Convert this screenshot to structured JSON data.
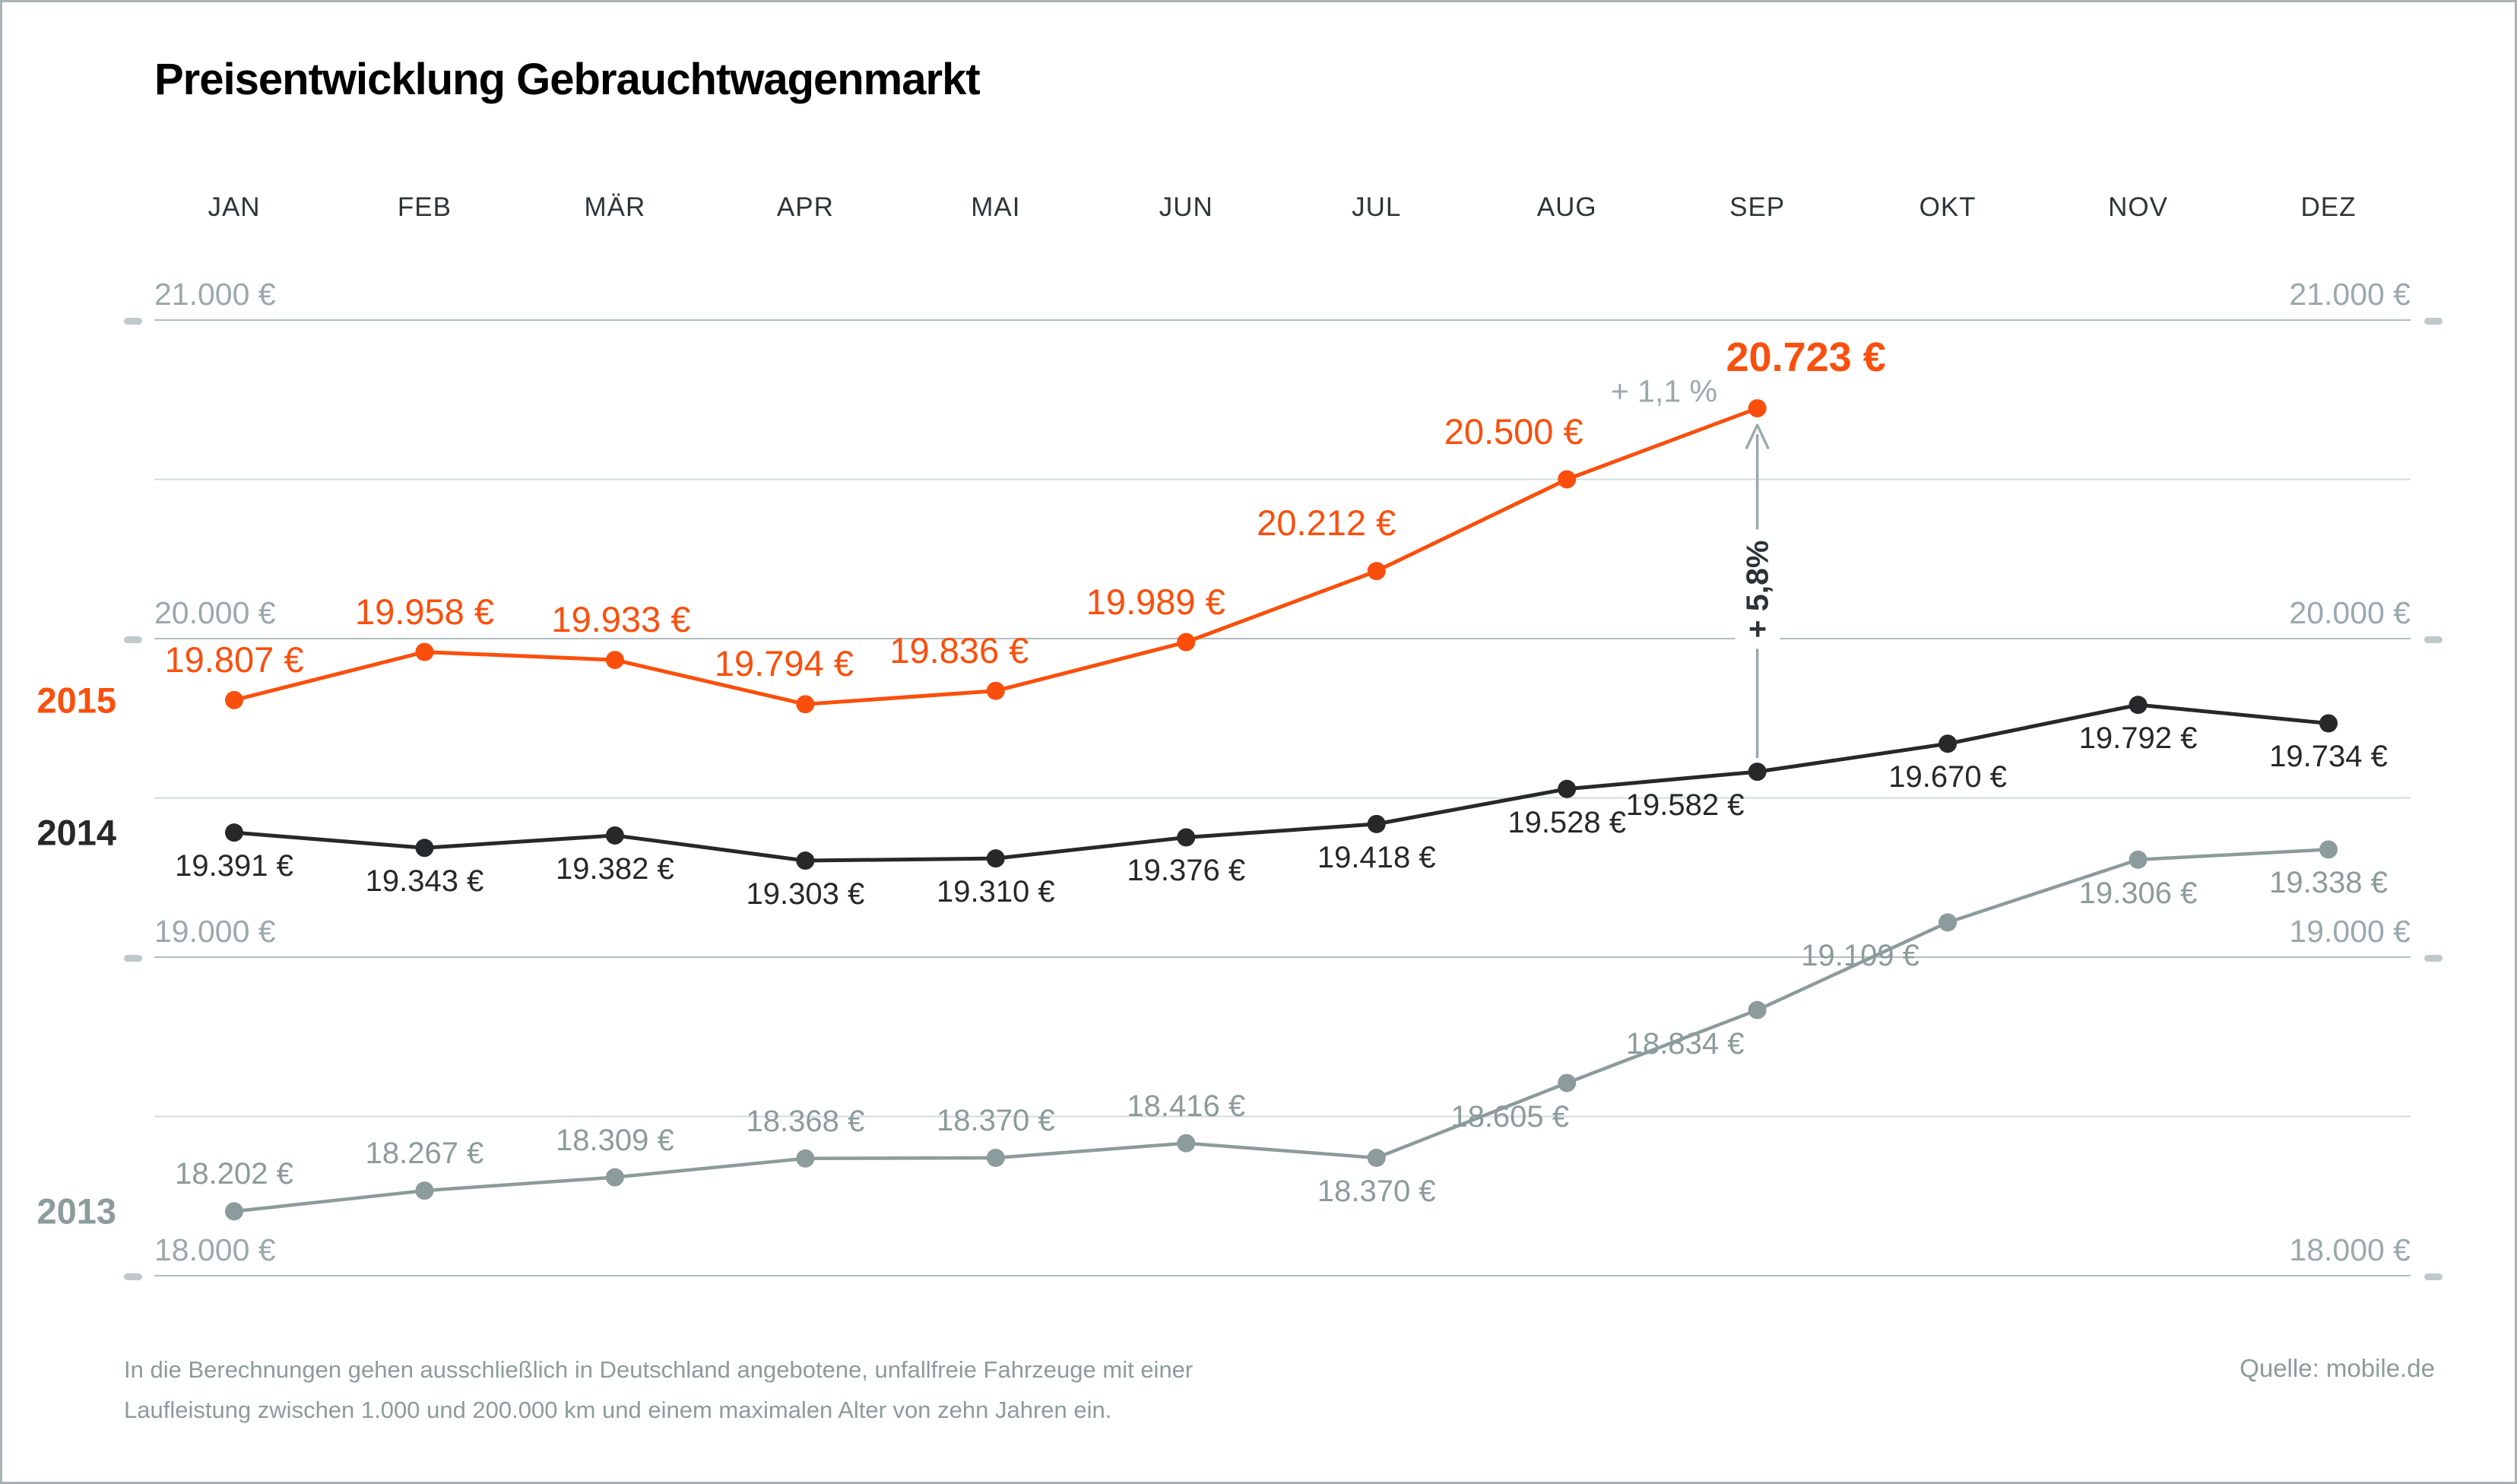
{
  "title": "Preisentwicklung Gebrauchtwagenmarkt",
  "colors": {
    "accent": "#FA4F0C",
    "series_2014": "#26282A",
    "series_2013": "#8C9B9B",
    "axis_text": "#9AA9AC",
    "grid_major": "#B2BDBF",
    "grid_minor": "#D4DBDC",
    "tick": "#BFC9CB",
    "arrow": "#9AA9AC",
    "month_text": "#2E3538"
  },
  "chart_data": {
    "type": "line",
    "categories": [
      "JAN",
      "FEB",
      "MÄR",
      "APR",
      "MAI",
      "JUN",
      "JUL",
      "AUG",
      "SEP",
      "OKT",
      "NOV",
      "DEZ"
    ],
    "ylim": [
      18000,
      21000
    ],
    "grid": "horizontal, every 500 €, labels every 1000 €",
    "legend_position": "year labels at left edge of each line",
    "y_axis": {
      "labeled_values": [
        21000,
        20000,
        19000,
        18000
      ],
      "labels": [
        "21.000 €",
        "20.000 €",
        "19.000 €",
        "18.000 €"
      ],
      "minor_values": [
        20500,
        19500,
        18500
      ]
    },
    "series": [
      {
        "name": "2015",
        "values": [
          19807,
          19958,
          19933,
          19794,
          19836,
          19989,
          20212,
          20500,
          20723
        ],
        "labels": [
          "19.807 €",
          "19.958 €",
          "19.933 €",
          "19.794 €",
          "19.836 €",
          "19.989 €",
          "20.212 €",
          "20.500 €",
          "20.723 €"
        ]
      },
      {
        "name": "2014",
        "values": [
          19391,
          19343,
          19382,
          19303,
          19310,
          19376,
          19418,
          19528,
          19582,
          19670,
          19792,
          19734
        ],
        "labels": [
          "19.391 €",
          "19.343 €",
          "19.382 €",
          "19.303 €",
          "19.310 €",
          "19.376 €",
          "19.418 €",
          "19.528 €",
          "19.582 €",
          "19.670 €",
          "19.792 €",
          "19.734 €"
        ]
      },
      {
        "name": "2013",
        "values": [
          18202,
          18267,
          18309,
          18368,
          18370,
          18416,
          18370,
          18605,
          18834,
          19109,
          19306,
          19338
        ],
        "labels": [
          "18.202 €",
          "18.267 €",
          "18.309 €",
          "18.368 €",
          "18.370 €",
          "18.416 €",
          "18.370 €",
          "18.605 €",
          "18.834 €",
          "19.109 €",
          "19.306 €",
          "19.338 €"
        ]
      }
    ],
    "annotations": {
      "month_change": "+ 1,1 %",
      "year_change": "+ 5,8%"
    }
  },
  "footer": {
    "note_lines": [
      "In die Berechnungen gehen ausschließlich in Deutschland angebotene, unfallfreie Fahrzeuge mit einer",
      "Laufleistung zwischen 1.000 und 200.000 km und einem maximalen Alter von zehn Jahren ein."
    ],
    "source": "Quelle: mobile.de"
  }
}
